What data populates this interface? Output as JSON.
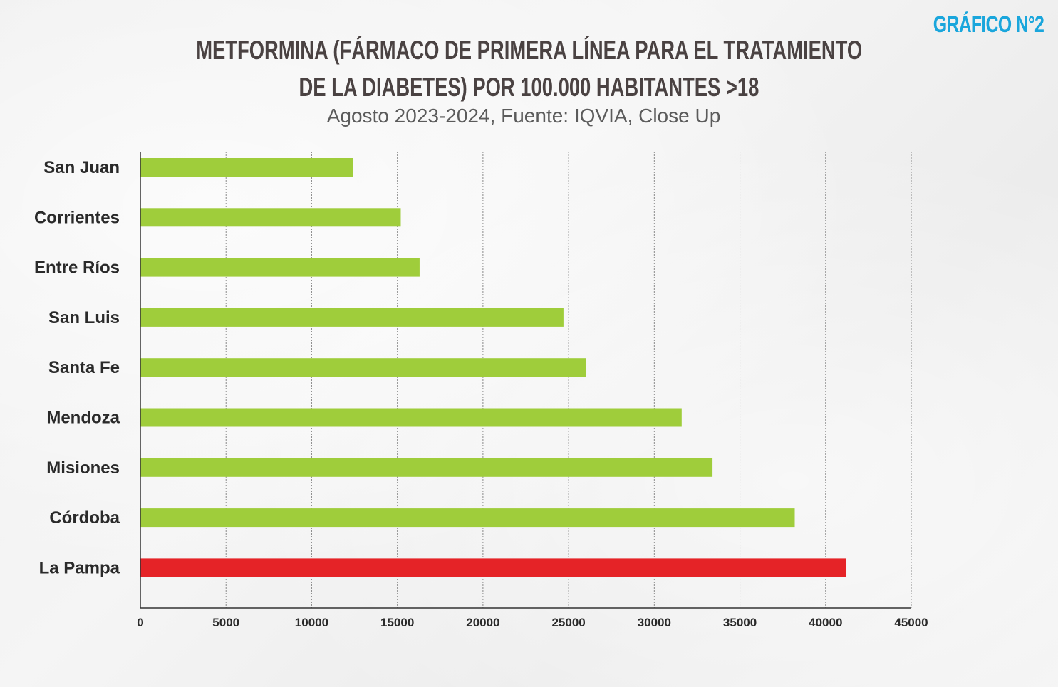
{
  "badge": "GRÁFICO N°2",
  "chart_data": {
    "type": "bar",
    "orientation": "horizontal",
    "title_line1": "METFORMINA  (FÁRMACO DE PRIMERA LÍNEA PARA EL TRATAMIENTO",
    "title_line2": "DE LA DIABETES)  POR 100.000 HABITANTES >18",
    "subtitle": "Agosto 2023-2024, Fuente: IQVIA, Close Up",
    "xlabel": "",
    "ylabel": "",
    "xlim": [
      0,
      45000
    ],
    "xticks": [
      "0",
      "5000",
      "10000",
      "15000",
      "20000",
      "25000",
      "30000",
      "35000",
      "40000",
      "45000"
    ],
    "grid": true,
    "categories": [
      "San Juan",
      "Corrientes",
      "Entre Ríos",
      "San Luis",
      "Santa Fe",
      "Mendoza",
      "Misiones",
      "Córdoba",
      "La Pampa"
    ],
    "values": [
      12400,
      15200,
      16300,
      24700,
      26000,
      31600,
      33400,
      38200,
      41200
    ],
    "colors": [
      "#9fcd3b",
      "#9fcd3b",
      "#9fcd3b",
      "#9fcd3b",
      "#9fcd3b",
      "#9fcd3b",
      "#9fcd3b",
      "#9fcd3b",
      "#e52327"
    ],
    "highlight": "La Pampa"
  }
}
